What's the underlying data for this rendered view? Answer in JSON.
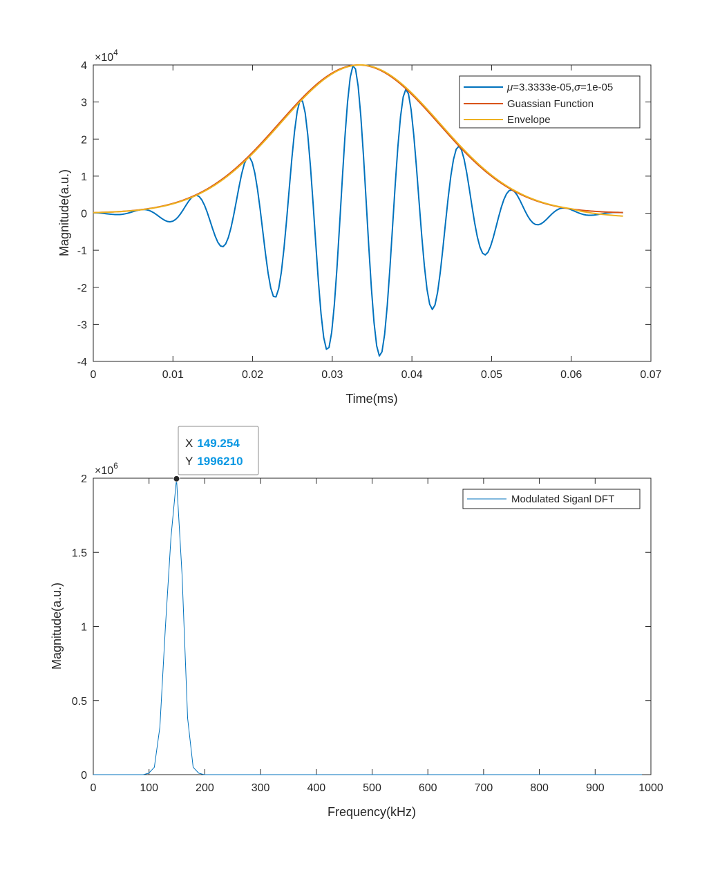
{
  "chart_data": [
    {
      "type": "line",
      "title": "",
      "xlabel": "Time(ms)",
      "ylabel": "Magnitude(a.u.)",
      "xlim": [
        0,
        0.07
      ],
      "ylim": [
        -4,
        4
      ],
      "y_exponent_label": "×10",
      "y_exponent": "4",
      "x_ticks": [
        "0",
        "0.01",
        "0.02",
        "0.03",
        "0.04",
        "0.05",
        "0.06",
        "0.07"
      ],
      "y_ticks": [
        "-4",
        "-3",
        "-2",
        "-1",
        "0",
        "1",
        "2",
        "3",
        "4"
      ],
      "legend_position": "top-right",
      "grid": false,
      "series": [
        {
          "name": "μ=3.3333e-05,σ=1e-05",
          "legend_prefix": "μ",
          "legend_mid": "=3.3333e-05,",
          "legend_sym": "σ",
          "legend_suffix": "=1e-05",
          "color": "#0072BD",
          "linewidth": 2,
          "generator": {
            "mu": 0.033333,
            "sigma": 0.01,
            "amplitude": 4,
            "freq": 150,
            "t_end": 0.0665,
            "samples": 200
          }
        },
        {
          "name": "Guassian Function",
          "color": "#D95319",
          "linewidth": 2,
          "generator": {
            "mu": 0.033333,
            "sigma": 0.01,
            "amplitude": 4,
            "t_end": 0.0665
          }
        },
        {
          "name": "Envelope",
          "color": "#EDB120",
          "linewidth": 2,
          "generator": {
            "mu": 0.0335,
            "sigma": 0.01,
            "amplitude": 4,
            "t_end": 0.0665,
            "tail_start": 0.06,
            "tail_end_value": -0.08
          }
        }
      ]
    },
    {
      "type": "line",
      "title": "",
      "xlabel": "Frequency(kHz)",
      "ylabel": "Magnitude(a.u.)",
      "xlim": [
        0,
        1000
      ],
      "ylim": [
        0,
        2
      ],
      "y_exponent_label": "×10",
      "y_exponent": "6",
      "x_ticks": [
        "0",
        "100",
        "200",
        "300",
        "400",
        "500",
        "600",
        "700",
        "800",
        "900",
        "1000"
      ],
      "y_ticks": [
        "0",
        "0.5",
        "1",
        "1.5",
        "2"
      ],
      "legend_position": "top-right",
      "grid": false,
      "series": [
        {
          "name": "Modulated Siganl DFT",
          "color": "#0072BD",
          "linewidth": 1,
          "x": [
            0,
            89.6,
            99.5,
            109.5,
            119.4,
            129.4,
            139.3,
            149.254,
            159.2,
            169.2,
            179.1,
            189.1,
            199.0,
            209.0,
            984.0
          ],
          "y": [
            0,
            0,
            0.01,
            0.05,
            0.32,
            1.0,
            1.6,
            1.99621,
            1.35,
            0.38,
            0.05,
            0.01,
            0,
            0,
            0
          ]
        }
      ],
      "datatip": {
        "x_label": "X",
        "x_value": "149.254",
        "y_label": "Y",
        "y_value": "1996210"
      }
    }
  ]
}
